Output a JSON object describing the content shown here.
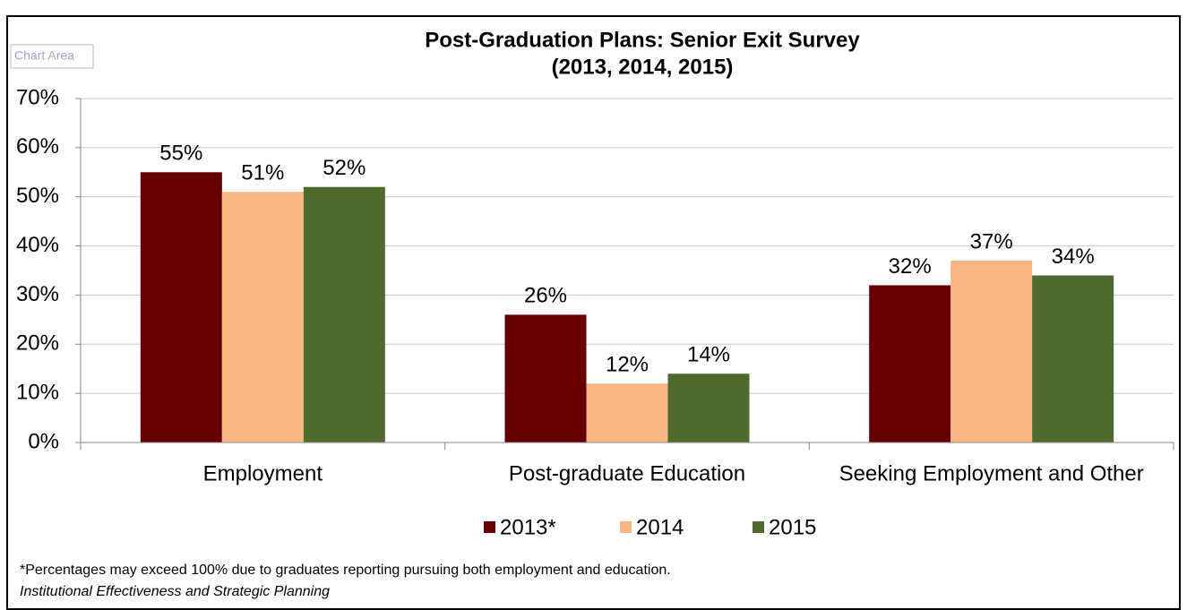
{
  "chart_data": {
    "type": "bar",
    "title": "Post-Graduation Plans: Senior Exit Survey",
    "subtitle": "(2013, 2014, 2015)",
    "tooltip": "Chart Area",
    "categories": [
      "Employment",
      "Post-graduate Education",
      "Seeking Employment and Other"
    ],
    "series": [
      {
        "name": "2013*",
        "color": "#660000",
        "values": [
          55,
          26,
          32
        ],
        "value_labels": [
          "55%",
          "26%",
          "32%"
        ]
      },
      {
        "name": "2014",
        "color": "#f9b784",
        "values": [
          51,
          12,
          37
        ],
        "value_labels": [
          "51%",
          "12%",
          "37%"
        ]
      },
      {
        "name": "2015",
        "color": "#4e6b2d",
        "values": [
          52,
          14,
          34
        ],
        "value_labels": [
          "52%",
          "14%",
          "34%"
        ]
      }
    ],
    "ylim": [
      0,
      70
    ],
    "yticks": [
      {
        "value": 0,
        "label": "0%"
      },
      {
        "value": 10,
        "label": "10%"
      },
      {
        "value": 20,
        "label": "20%"
      },
      {
        "value": 30,
        "label": "30%"
      },
      {
        "value": 40,
        "label": "40%"
      },
      {
        "value": 50,
        "label": "50%"
      },
      {
        "value": 60,
        "label": "60%"
      },
      {
        "value": 70,
        "label": "70%"
      }
    ],
    "grid": true,
    "legend": "bottom",
    "footnote": "*Percentages may exceed 100% due to graduates reporting pursuing both employment and education.",
    "source": "Institutional Effectiveness and Strategic Planning"
  }
}
